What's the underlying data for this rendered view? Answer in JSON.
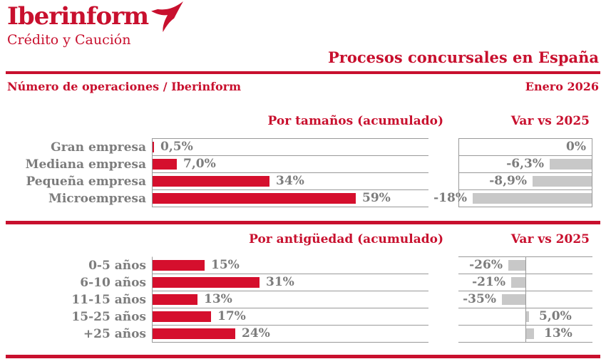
{
  "brand": {
    "logo_text": "Iberinform",
    "logo_sub": "Crédito y Caución",
    "logo_icon": "bird-icon"
  },
  "header": {
    "title": "Procesos concursales en España",
    "subtitle_left": "Número de operaciones / Iberinform",
    "subtitle_right": "Enero 2026"
  },
  "colors": {
    "brand_red": "#c8102e",
    "bar_red": "#d50f2d",
    "bar_gray": "#c8c8c8",
    "text_gray": "#7c7c7c",
    "grid_gray": "#999999"
  },
  "chart_data": [
    {
      "type": "bar",
      "orientation": "horizontal",
      "title": "Por tamaños (acumulado)",
      "categories": [
        "Gran empresa",
        "Mediana empresa",
        "Pequeña empresa",
        "Microempresa"
      ],
      "values": [
        0.5,
        7.0,
        34,
        59
      ],
      "value_labels": [
        "0,5%",
        "7,0%",
        "34%",
        "59%"
      ],
      "xlim": [
        0,
        80
      ],
      "grid": "row-lines",
      "var_title": "Var vs 2025",
      "var_values": [
        0,
        -6.3,
        -8.9,
        -18
      ],
      "var_value_labels": [
        "0%",
        "-6,3%",
        "-8,9%",
        "-18%"
      ],
      "var_xlim": [
        -20,
        0
      ],
      "var_anchor": "right"
    },
    {
      "type": "bar",
      "orientation": "horizontal",
      "title": "Por antigüedad (acumulado)",
      "categories": [
        "0-5 años",
        "6-10 años",
        "11-15 años",
        "15-25 años",
        "+25 años"
      ],
      "values": [
        15,
        31,
        13,
        17,
        24
      ],
      "value_labels": [
        "15%",
        "31%",
        "13%",
        "17%",
        "24%"
      ],
      "xlim": [
        0,
        80
      ],
      "grid": "row-lines",
      "var_title": "Var vs 2025",
      "var_values": [
        -26,
        -21,
        -35,
        5.0,
        13
      ],
      "var_value_labels": [
        "-26%",
        "-21%",
        "-35%",
        "5,0%",
        "13%"
      ],
      "var_xlim": [
        -100,
        100
      ],
      "var_anchor": "center"
    }
  ]
}
